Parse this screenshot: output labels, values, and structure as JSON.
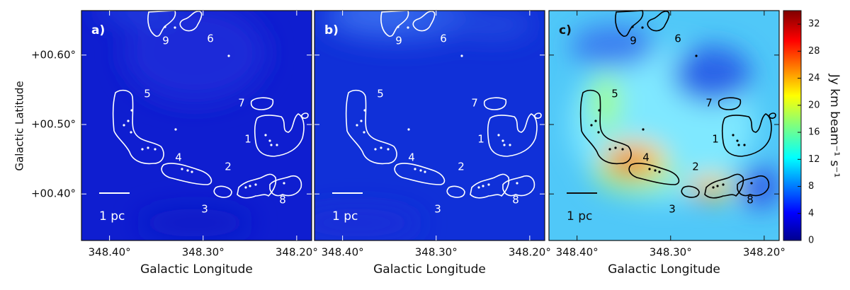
{
  "chart_data": [
    {
      "type": "image",
      "panel_label": "a)",
      "background": "blue",
      "contour_color": "#ffffff",
      "xlabel": "Galactic Longitude",
      "ylabel": "Galactic Latitude",
      "xlim": [
        348.43,
        348.184
      ],
      "ylim": [
        0.333,
        0.664
      ],
      "xticks": [
        {
          "value": 348.4,
          "label": "348.40°"
        },
        {
          "value": 348.3,
          "label": "348.30°"
        },
        {
          "value": 348.2,
          "label": "348.20°"
        }
      ],
      "yticks": [
        {
          "value": 0.6,
          "label": "+00.60°"
        },
        {
          "value": 0.5,
          "label": "+00.50°"
        },
        {
          "value": 0.4,
          "label": "+00.40°"
        }
      ],
      "region_labels": [
        "1",
        "2",
        "3",
        "4",
        "5",
        "6",
        "7",
        "8",
        "9"
      ],
      "scale_bar": "1 pc"
    },
    {
      "type": "image",
      "panel_label": "b)",
      "background": "blue-haze",
      "contour_color": "#ffffff",
      "xlabel": "Galactic Longitude",
      "xlim": [
        348.43,
        348.184
      ],
      "ylim": [
        0.333,
        0.664
      ],
      "xticks": [
        {
          "value": 348.4,
          "label": "348.40°"
        },
        {
          "value": 348.3,
          "label": "348.30°"
        },
        {
          "value": 348.2,
          "label": "348.20°"
        }
      ],
      "region_labels": [
        "1",
        "2",
        "3",
        "4",
        "5",
        "6",
        "7",
        "8",
        "9"
      ],
      "scale_bar": "1 pc"
    },
    {
      "type": "image",
      "panel_label": "c)",
      "background": "jet-map",
      "contour_color": "#000000",
      "xlabel": "Galactic Longitude",
      "xlim": [
        348.43,
        348.184
      ],
      "ylim": [
        0.333,
        0.664
      ],
      "xticks": [
        {
          "value": 348.4,
          "label": "348.40°"
        },
        {
          "value": 348.3,
          "label": "348.30°"
        },
        {
          "value": 348.2,
          "label": "348.20°"
        }
      ],
      "region_labels": [
        "1",
        "2",
        "3",
        "4",
        "5",
        "6",
        "7",
        "8",
        "9"
      ],
      "scale_bar": "1 pc",
      "colorbar": {
        "label": "Jy km beam⁻¹ s⁻¹",
        "colormap": "jet",
        "lim": [
          0,
          34
        ],
        "ticks": [
          0,
          4,
          8,
          12,
          16,
          20,
          24,
          28,
          32
        ]
      }
    }
  ]
}
